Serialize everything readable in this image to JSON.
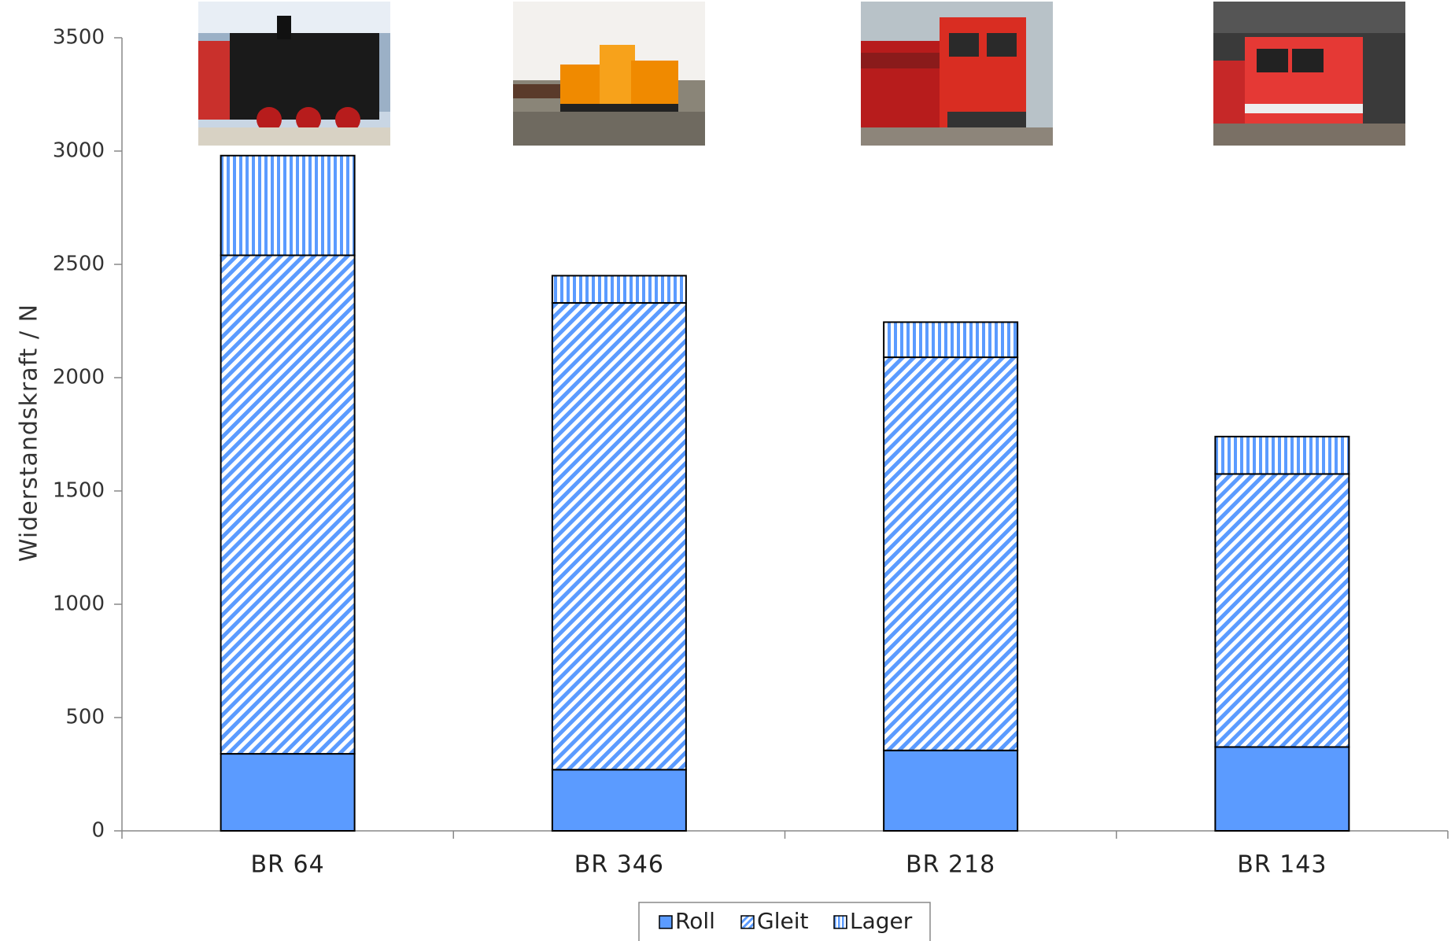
{
  "chart_data": {
    "type": "bar",
    "stacked": true,
    "title": "",
    "xlabel": "",
    "ylabel": "Widerstandskraft / N",
    "ylim": [
      0,
      3500
    ],
    "yticks": [
      0,
      500,
      1000,
      1500,
      2000,
      2500,
      3000,
      3500
    ],
    "grid": false,
    "legend_position": "bottom-center",
    "categories": [
      "BR 64",
      "BR 346",
      "BR 218",
      "BR 143"
    ],
    "series": [
      {
        "name": "Roll",
        "values": [
          340,
          270,
          355,
          370
        ],
        "pattern": "solid"
      },
      {
        "name": "Gleit",
        "values": [
          2200,
          2060,
          1735,
          1205
        ],
        "pattern": "diagonal-stripes"
      },
      {
        "name": "Lager",
        "values": [
          440,
          120,
          155,
          165
        ],
        "pattern": "vertical-stripes"
      }
    ],
    "colors": {
      "fill": "#5b9bff",
      "stroke": "#000000"
    },
    "images": [
      "steam-locomotive-photo",
      "orange-diesel-shunter-photo",
      "red-diesel-locomotive-photo",
      "red-electric-locomotive-photo"
    ]
  }
}
